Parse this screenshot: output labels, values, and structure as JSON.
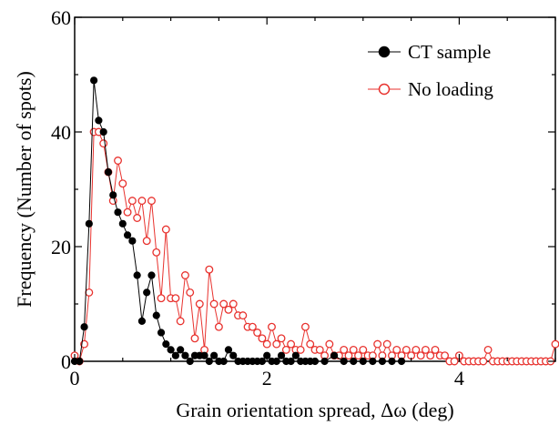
{
  "chart_data": {
    "type": "line",
    "xlabel": "Grain orientation spread, Δω (deg)",
    "ylabel": "Frequency (Number of spots)",
    "xlim": [
      0,
      5
    ],
    "ylim": [
      0,
      60
    ],
    "x_ticks": [
      0,
      2,
      4
    ],
    "y_ticks": [
      0,
      20,
      40,
      60
    ],
    "grid": false,
    "legend_position": "top-right",
    "series": [
      {
        "name": "CT sample",
        "color": "#000000",
        "marker": "filled-circle",
        "x": [
          0.0,
          0.05,
          0.1,
          0.15,
          0.2,
          0.25,
          0.3,
          0.35,
          0.4,
          0.45,
          0.5,
          0.55,
          0.6,
          0.65,
          0.7,
          0.75,
          0.8,
          0.85,
          0.9,
          0.95,
          1.0,
          1.05,
          1.1,
          1.15,
          1.2,
          1.25,
          1.3,
          1.35,
          1.4,
          1.45,
          1.5,
          1.55,
          1.6,
          1.65,
          1.7,
          1.75,
          1.8,
          1.85,
          1.9,
          1.95,
          2.0,
          2.05,
          2.1,
          2.15,
          2.2,
          2.25,
          2.3,
          2.35,
          2.4,
          2.45,
          2.5,
          2.6,
          2.7,
          2.8,
          2.9,
          3.0,
          3.1,
          3.2,
          3.3,
          3.4
        ],
        "values": [
          0,
          0,
          6,
          24,
          49,
          42,
          40,
          33,
          29,
          26,
          24,
          22,
          21,
          15,
          7,
          12,
          15,
          8,
          5,
          3,
          2,
          1,
          2,
          1,
          0,
          1,
          1,
          1,
          0,
          1,
          0,
          0,
          2,
          1,
          0,
          0,
          0,
          0,
          0,
          0,
          1,
          0,
          0,
          1,
          0,
          0,
          1,
          0,
          0,
          0,
          0,
          0,
          1,
          0,
          0,
          0,
          0,
          0,
          0,
          0
        ]
      },
      {
        "name": "No loading",
        "color": "#e8322e",
        "marker": "open-circle",
        "x": [
          0.0,
          0.05,
          0.1,
          0.15,
          0.2,
          0.25,
          0.3,
          0.35,
          0.4,
          0.45,
          0.5,
          0.55,
          0.6,
          0.65,
          0.7,
          0.75,
          0.8,
          0.85,
          0.9,
          0.95,
          1.0,
          1.05,
          1.1,
          1.15,
          1.2,
          1.25,
          1.3,
          1.35,
          1.4,
          1.45,
          1.5,
          1.55,
          1.6,
          1.65,
          1.7,
          1.75,
          1.8,
          1.85,
          1.9,
          1.95,
          2.0,
          2.05,
          2.1,
          2.15,
          2.2,
          2.25,
          2.3,
          2.35,
          2.4,
          2.45,
          2.5,
          2.55,
          2.6,
          2.65,
          2.7,
          2.75,
          2.8,
          2.85,
          2.9,
          2.95,
          3.0,
          3.05,
          3.1,
          3.15,
          3.2,
          3.25,
          3.3,
          3.35,
          3.4,
          3.45,
          3.5,
          3.55,
          3.6,
          3.65,
          3.7,
          3.75,
          3.8,
          3.85,
          3.9,
          3.95,
          4.0,
          4.05,
          4.1,
          4.15,
          4.2,
          4.25,
          4.3,
          4.35,
          4.4,
          4.45,
          4.5,
          4.55,
          4.6,
          4.65,
          4.7,
          4.75,
          4.8,
          4.85,
          4.9,
          4.95,
          5.0
        ],
        "values": [
          1,
          0,
          3,
          12,
          40,
          40,
          38,
          33,
          28,
          35,
          31,
          26,
          28,
          25,
          28,
          21,
          28,
          19,
          11,
          23,
          11,
          11,
          7,
          15,
          12,
          4,
          10,
          2,
          16,
          10,
          6,
          10,
          9,
          10,
          8,
          8,
          6,
          6,
          5,
          4,
          3,
          6,
          3,
          4,
          2,
          3,
          2,
          2,
          6,
          3,
          2,
          2,
          1,
          3,
          1,
          1,
          2,
          1,
          2,
          1,
          2,
          1,
          1,
          3,
          1,
          3,
          1,
          2,
          1,
          2,
          1,
          2,
          1,
          2,
          1,
          2,
          1,
          1,
          0,
          0,
          1,
          0,
          0,
          0,
          0,
          0,
          2,
          0,
          0,
          0,
          0,
          0,
          0,
          0,
          0,
          0,
          0,
          0,
          0,
          0,
          3
        ]
      }
    ]
  }
}
